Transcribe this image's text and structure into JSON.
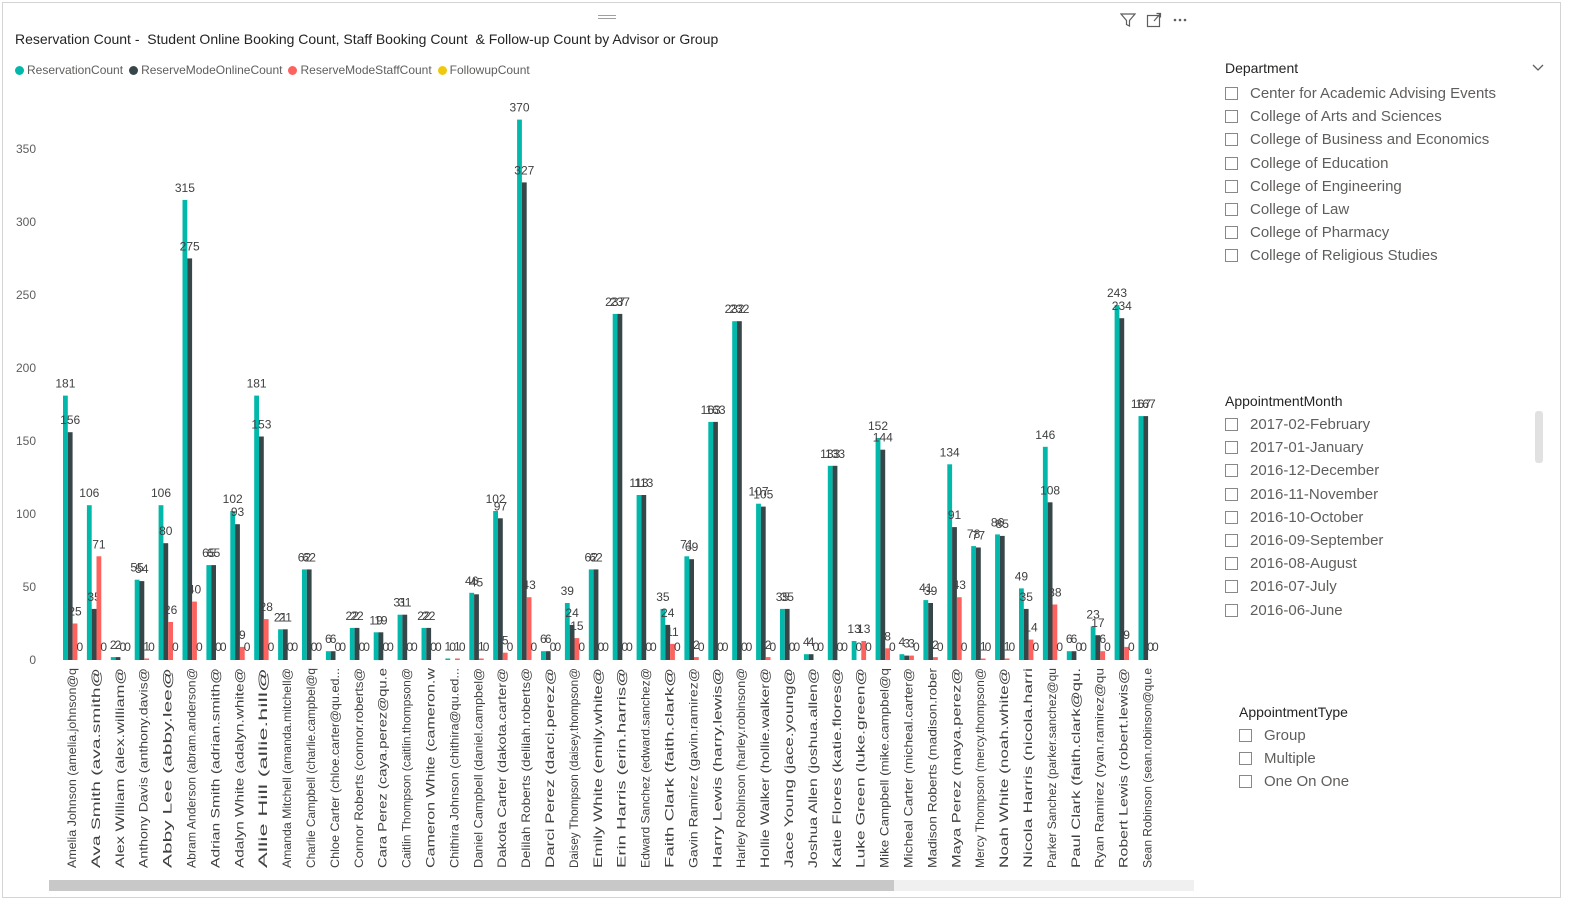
{
  "chart_data": {
    "type": "bar",
    "title": "Reservation Count -  Student Online Booking Count, Staff Booking Count  & Follow-up Count by Advisor or Group",
    "categories": [
      "Amelia Johnson (amelia.johnson@q",
      "Ava Smith (ava.smith@",
      "Alex William (alex.william@",
      "Anthony Davis (anthony.davis@",
      "Abby Lee (abby.lee@",
      "Abram Anderson (abram.anderson@",
      "Adrian Smith (adrian.smith@",
      "Adalyn White (adalyn.white@",
      "Allie Hill (allie.hill@",
      "Amanda Mitchell (amanda.mitchell@",
      "Charlie Campbell (charlie.campbel@q",
      "Chloe Carter (chloe.carter@qu.ed...",
      "Connor Roberts (connor.roberts@",
      "Cara Perez (caya.perez@qu.e",
      "Caitlin Thompson (caitlin.thompson@",
      "Cameron White (cameron.w",
      "Chithira Johnson (chithira@qu.ed...",
      "Daniel Campbell (daniel.campbel@",
      "Dakota Carter (dakota.carter@",
      "Delilah Roberts (delilah.roberts@",
      "Darci Perez (darci.perez@",
      "Daisey Thompson (daisey.thompson@",
      "Emily White (emily.white@",
      "Erin Harris (erin.harris@",
      "Edward Sanchez (edward.sanchez@",
      "Faith Clark (faith.clark@",
      "Gavin Ramirez (gavin.ramirez@",
      "Harry Lewis (harry.lewis@",
      "Harley Robinson (harley.robinson@",
      "Hollie Walker (hollie.walker@",
      "Jace Young (jace.young@",
      "Joshua Allen (joshua.allen@",
      "Katie Flores (katie.flores@",
      "Luke Green (luke.green@",
      "Mike Campbell (mike.campbel@q",
      "Micheal Carter (micheal.carter@",
      "Madison Roberts (madison.rober",
      "Maya Perez (maya.perez@",
      "Mercy Thompson (mercy.thompson@",
      "Noah White (noah.white@",
      "Nicola Harris (nicola.harri",
      "Parker Sanchez (parker.sanchez@qu",
      "Paul Clark (faith.clark@qu.",
      "Ryan Ramirez (ryan.ramirez@qu",
      "Robert Lewis (robert.lewis@",
      "Sean Robinson (sean.robinson@qu.e"
    ],
    "series": [
      {
        "name": "ReservationCount",
        "color": "#01B8AA",
        "values": [
          181,
          106,
          2,
          55,
          106,
          315,
          65,
          102,
          181,
          21,
          62,
          6,
          22,
          19,
          31,
          22,
          1,
          46,
          102,
          370,
          6,
          39,
          62,
          237,
          113,
          35,
          71,
          163,
          232,
          107,
          35,
          4,
          133,
          13,
          152,
          4,
          41,
          134,
          78,
          86,
          49,
          146,
          6,
          23,
          243,
          167
        ]
      },
      {
        "name": "ReserveModeOnlineCount",
        "color": "#374649",
        "values": [
          156,
          35,
          2,
          54,
          80,
          275,
          65,
          93,
          153,
          21,
          62,
          6,
          22,
          19,
          31,
          22,
          0,
          45,
          97,
          327,
          6,
          24,
          62,
          237,
          113,
          24,
          69,
          163,
          232,
          105,
          35,
          4,
          133,
          0,
          144,
          3,
          39,
          91,
          77,
          85,
          35,
          108,
          6,
          17,
          234,
          167
        ]
      },
      {
        "name": "ReserveModeStaffCount",
        "color": "#FD625E",
        "values": [
          25,
          71,
          0,
          1,
          26,
          40,
          0,
          9,
          28,
          0,
          0,
          0,
          0,
          0,
          0,
          0,
          1,
          1,
          5,
          43,
          0,
          15,
          0,
          0,
          0,
          11,
          2,
          0,
          0,
          2,
          0,
          0,
          0,
          13,
          8,
          3,
          2,
          43,
          1,
          1,
          14,
          38,
          0,
          6,
          9,
          0
        ]
      },
      {
        "name": "FollowupCount",
        "color": "#F2C80F",
        "values": [
          0,
          0,
          0,
          0,
          0,
          0,
          0,
          0,
          0,
          0,
          0,
          0,
          0,
          0,
          0,
          0,
          0,
          0,
          0,
          0,
          0,
          0,
          0,
          0,
          0,
          0,
          0,
          0,
          0,
          0,
          0,
          0,
          0,
          0,
          0,
          0,
          0,
          0,
          0,
          0,
          0,
          0,
          0,
          0,
          0,
          0
        ]
      }
    ],
    "ylim": [
      0,
      380
    ],
    "yticks": [
      "0",
      "50",
      "100",
      "150",
      "200",
      "250",
      "300",
      "350"
    ],
    "grid": false,
    "legend_position": "top-left"
  },
  "visual": {
    "icons": [
      "filter-icon",
      "focus-mode-icon",
      "more-options-icon"
    ]
  },
  "department_slicer": {
    "title": "Department",
    "items": [
      "Center for Academic Advising Events",
      "College of Arts and Sciences",
      "College of Business and Economics",
      "College of Education",
      "College of Engineering",
      "College of Law",
      "College of Pharmacy",
      "College of Religious Studies"
    ]
  },
  "month_slicer": {
    "title": "AppointmentMonth",
    "items": [
      "2017-02-February",
      "2017-01-January",
      "2016-12-December",
      "2016-11-November",
      "2016-10-October",
      "2016-09-September",
      "2016-08-August",
      "2016-07-July",
      "2016-06-June"
    ]
  },
  "type_slicer": {
    "title": "AppointmentType",
    "items": [
      "Group",
      "Multiple",
      "One On One"
    ]
  }
}
